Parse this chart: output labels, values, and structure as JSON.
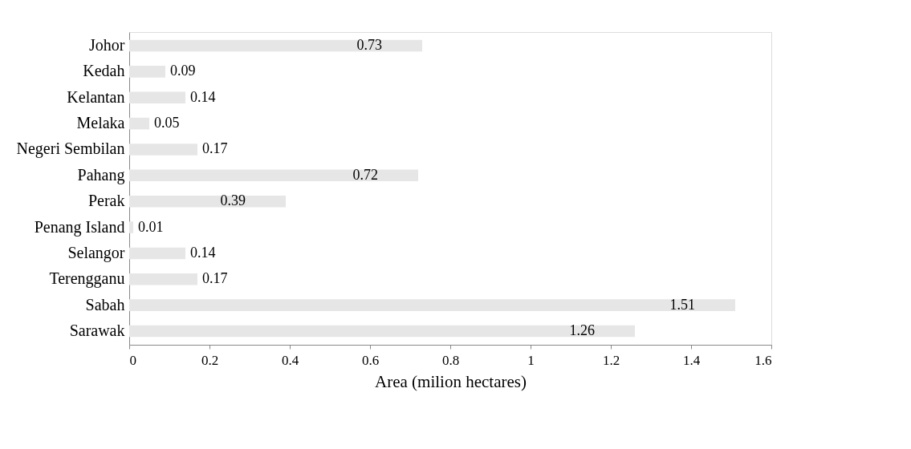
{
  "chart_data": {
    "type": "bar",
    "orientation": "horizontal",
    "xlabel": "Area (milion hectares)",
    "categories": [
      "Johor",
      "Kedah",
      "Kelantan",
      "Melaka",
      "Negeri Sembilan",
      "Pahang",
      "Perak",
      "Penang Island",
      "Selangor",
      "Terengganu",
      "Sabah",
      "Sarawak"
    ],
    "values": [
      0.73,
      0.09,
      0.14,
      0.05,
      0.17,
      0.72,
      0.39,
      0.01,
      0.14,
      0.17,
      1.51,
      1.26
    ],
    "color": "#e6e6e6",
    "xlim": [
      0,
      1.6
    ],
    "xticks": [
      0,
      0.2,
      0.4,
      0.6,
      0.8,
      1,
      1.2,
      1.4,
      1.6
    ],
    "data_labels": true,
    "grid": false
  }
}
